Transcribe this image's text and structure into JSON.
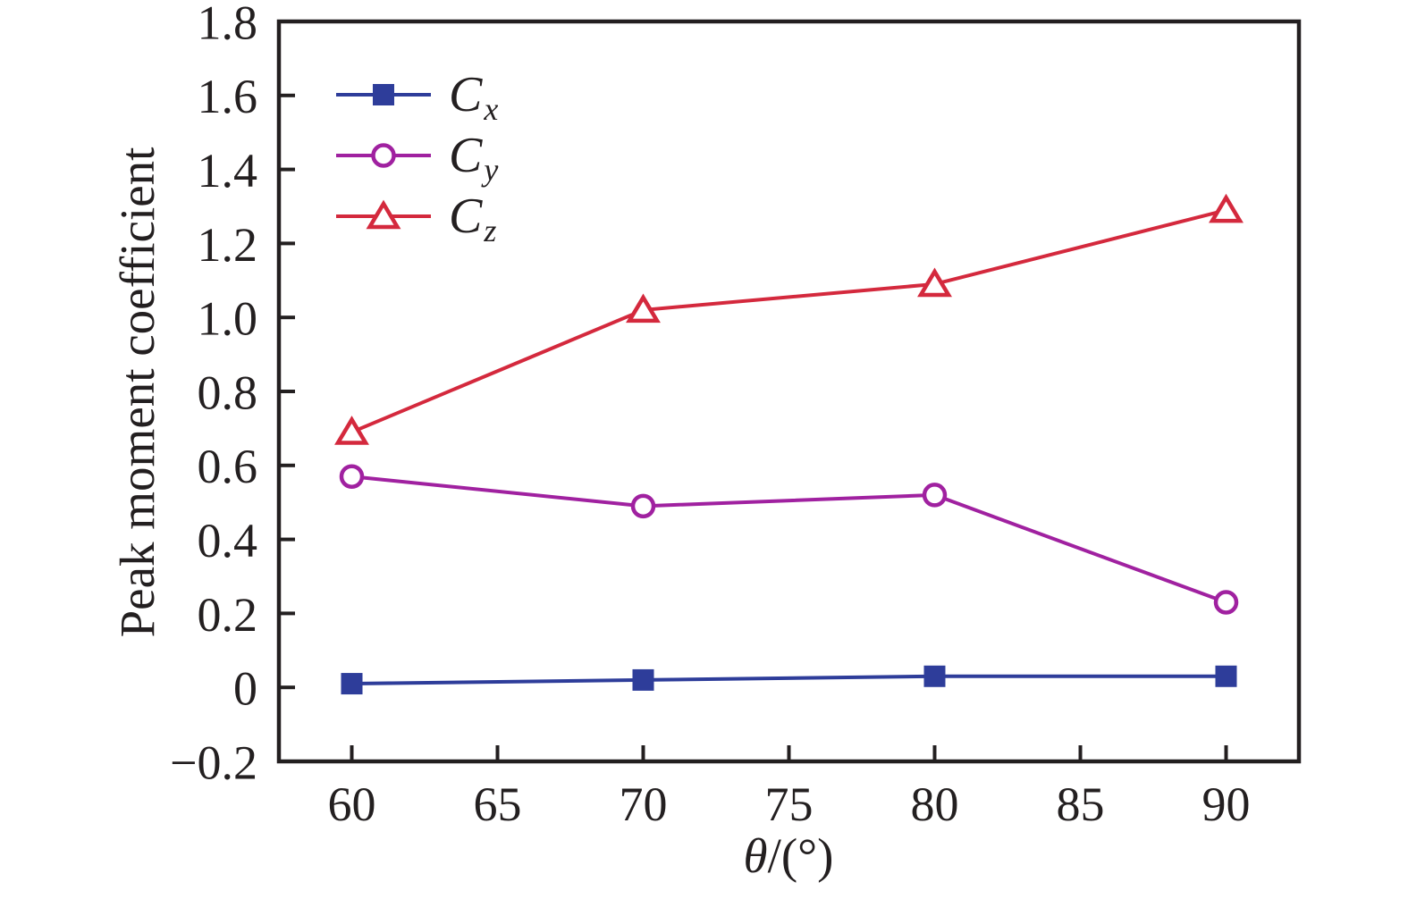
{
  "figure": {
    "background": "#ffffff",
    "text_color": "#231f20",
    "axis_color": "#231f20"
  },
  "chart_data": {
    "type": "line",
    "title": "",
    "xlabel": "θ/(°)",
    "xlabel_symbol": "θ",
    "xlabel_rest": "/(°)",
    "ylabel": "Peak moment coefficient",
    "xlim": [
      57.5,
      92.5
    ],
    "ylim": [
      -0.2,
      1.8
    ],
    "grid": false,
    "legend_position": "upper-left-inside",
    "x_ticks": [
      60,
      65,
      70,
      75,
      80,
      85,
      90
    ],
    "x_tick_labels": [
      "60",
      "65",
      "70",
      "75",
      "80",
      "85",
      "90"
    ],
    "y_ticks": [
      1.8,
      1.6,
      1.4,
      1.2,
      1.0,
      0.8,
      0.6,
      0.4,
      0.2,
      0,
      -0.2
    ],
    "y_tick_labels": [
      "1.8",
      "1.6",
      "1.4",
      "1.2",
      "1.0",
      "0.8",
      "0.6",
      "0.4",
      "0.2",
      "0",
      "−0.2"
    ],
    "x": [
      60,
      70,
      80,
      90
    ],
    "series": [
      {
        "name": "Cx",
        "label_base": "C",
        "label_sub": "x",
        "marker": "square-filled",
        "color": "#2e3d9a",
        "values": [
          0.01,
          0.02,
          0.03,
          0.03
        ]
      },
      {
        "name": "Cy",
        "label_base": "C",
        "label_sub": "y",
        "marker": "circle-open",
        "color": "#a021a0",
        "values": [
          0.57,
          0.49,
          0.52,
          0.23
        ]
      },
      {
        "name": "Cz",
        "label_base": "C",
        "label_sub": "z",
        "marker": "triangle-open",
        "color": "#d4293d",
        "values": [
          0.69,
          1.02,
          1.09,
          1.29
        ]
      }
    ]
  }
}
